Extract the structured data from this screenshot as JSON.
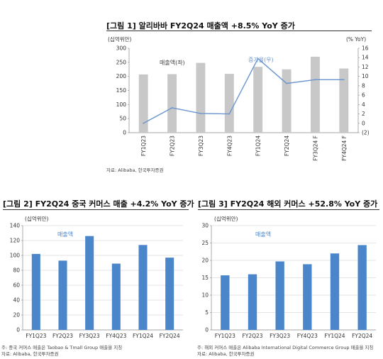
{
  "figures": [
    {
      "title": "[그림 1] 알리바바 FY2Q24 매출액 +8.5% YoY 증가",
      "source": "자료: Alibaba, 한국투자증권",
      "note": ""
    },
    {
      "title": "[그림 2] FY2Q24 중국 커머스 매출 +4.2% YoY 증가",
      "source": "자료: Alibaba, 한국투자증권",
      "note": "주: 중국 커머스 매출은 Taobao & Tmall Group 매출을 지칭"
    },
    {
      "title": "[그림 3] FY2Q24 해외 커머스 +52.8% YoY 증가",
      "source": "자료: Alibaba, 한국투자증권",
      "note": "주: 해외 커머스 매출은 Alibaba International Digital Commerce Group 매출을 지칭"
    }
  ],
  "chart_data": [
    {
      "type": "bar",
      "categories": [
        "FY1Q23",
        "FY2Q23",
        "FY3Q23",
        "FY4Q23",
        "FY1Q24",
        "FY2Q24",
        "FY3Q24 F",
        "FY4Q24 F"
      ],
      "series": [
        {
          "name": "매출액(좌)",
          "type": "bar",
          "axis": "left",
          "values": [
            207,
            208,
            248,
            209,
            234,
            225,
            270,
            228
          ],
          "color": "#c8c8c8"
        },
        {
          "name": "증가율(우)",
          "type": "line",
          "axis": "right",
          "values": [
            0,
            3.3,
            2.1,
            2.0,
            13.8,
            8.5,
            9.3,
            9.3
          ],
          "color": "#6a95cf"
        }
      ],
      "ylabel": "(십억위안)",
      "ylabel_right": "(% YoY)",
      "ylim": [
        0,
        300
      ],
      "yticks": [
        0,
        50,
        100,
        150,
        200,
        250,
        300
      ],
      "ylim_right": [
        -2,
        16
      ],
      "yticks_right": [
        -2,
        0,
        2,
        4,
        6,
        8,
        10,
        12,
        14,
        16
      ],
      "ytick_labels_right": [
        "(2)",
        "0",
        "2",
        "4",
        "6",
        "8",
        "10",
        "12",
        "14",
        "16"
      ],
      "grid": false
    },
    {
      "type": "bar",
      "categories": [
        "FY1Q23",
        "FY2Q23",
        "FY3Q23",
        "FY4Q23",
        "FY1Q24",
        "FY2Q24"
      ],
      "series": [
        {
          "name": "매출액",
          "values": [
            102,
            93,
            126,
            89,
            114,
            97
          ],
          "color": "#4b86cb"
        }
      ],
      "ylabel": "(십억위안)",
      "ylim": [
        0,
        140
      ],
      "yticks": [
        0,
        20,
        40,
        60,
        80,
        100,
        120,
        140
      ],
      "grid": true
    },
    {
      "type": "bar",
      "categories": [
        "FY1Q23",
        "FY2Q23",
        "FY3Q23",
        "FY4Q23",
        "FY1Q24",
        "FY2Q24"
      ],
      "series": [
        {
          "name": "매출액",
          "values": [
            15.7,
            16.0,
            19.7,
            18.9,
            22.0,
            24.4
          ],
          "color": "#4b86cb"
        }
      ],
      "ylabel": "(십억위안)",
      "ylim": [
        0,
        30
      ],
      "yticks": [
        0,
        5,
        10,
        15,
        20,
        25,
        30
      ],
      "grid": true
    }
  ]
}
